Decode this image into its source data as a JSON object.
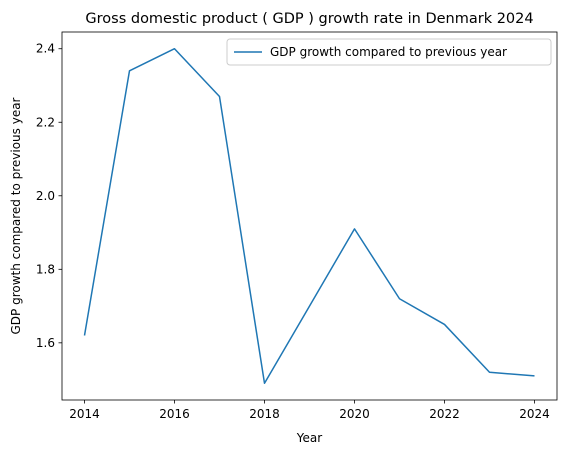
{
  "chart_data": {
    "type": "line",
    "title": "Gross domestic product ( GDP ) growth rate in Denmark 2024",
    "xlabel": "Year",
    "ylabel": "GDP growth compared to previous year",
    "x": [
      2014,
      2015,
      2016,
      2017,
      2018,
      2019,
      2020,
      2021,
      2022,
      2023,
      2024
    ],
    "series": [
      {
        "name": "GDP growth compared to previous year",
        "color": "#1f77b4",
        "values": [
          1.62,
          2.34,
          2.4,
          2.27,
          1.49,
          1.7,
          1.91,
          1.72,
          1.65,
          1.52,
          1.51
        ]
      }
    ],
    "xticks": [
      "2014",
      "2016",
      "2018",
      "2020",
      "2022",
      "2024"
    ],
    "yticks": [
      "1.6",
      "1.8",
      "2.0",
      "2.2",
      "2.4"
    ],
    "xlim": [
      2013.5,
      2024.5
    ],
    "ylim": [
      1.4445,
      2.4455
    ],
    "grid": false,
    "legend_position": "top-right"
  }
}
